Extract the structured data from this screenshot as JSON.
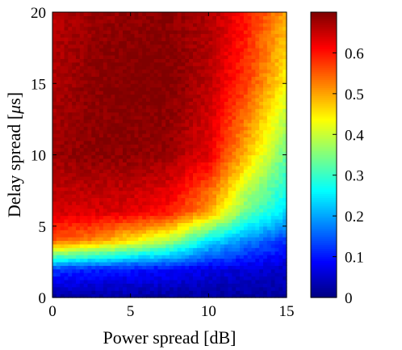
{
  "chart_data": {
    "type": "heatmap",
    "xlabel": "Power spread [dB]",
    "ylabel_prefix": "Delay spread [",
    "ylabel_mu": "μ",
    "ylabel_suffix": "s]",
    "xlim": [
      0,
      15
    ],
    "ylim": [
      0,
      20
    ],
    "x_ticks": [
      0,
      5,
      10,
      15
    ],
    "y_ticks": [
      0,
      5,
      10,
      15,
      20
    ],
    "colorbar": {
      "range": [
        0,
        0.7
      ],
      "ticks": [
        0,
        0.1,
        0.2,
        0.3,
        0.4,
        0.5,
        0.6
      ],
      "tick_labels": [
        "0",
        "0.1",
        "0.2",
        "0.3",
        "0.4",
        "0.5",
        "0.6"
      ],
      "colormap": "jet"
    },
    "grid": false,
    "sample_x": [
      0,
      2.5,
      5,
      7.5,
      10,
      12.5,
      15
    ],
    "sample_y": [
      0,
      2,
      4,
      6,
      10,
      15,
      20
    ],
    "sample_values": [
      [
        0.02,
        0.02,
        0.02,
        0.02,
        0.02,
        0.02,
        0.02
      ],
      [
        0.13,
        0.11,
        0.1,
        0.09,
        0.07,
        0.06,
        0.05
      ],
      [
        0.55,
        0.52,
        0.45,
        0.38,
        0.25,
        0.18,
        0.12
      ],
      [
        0.64,
        0.64,
        0.63,
        0.6,
        0.5,
        0.33,
        0.24
      ],
      [
        0.68,
        0.69,
        0.69,
        0.68,
        0.63,
        0.48,
        0.33
      ],
      [
        0.67,
        0.69,
        0.7,
        0.7,
        0.66,
        0.57,
        0.44
      ],
      [
        0.66,
        0.68,
        0.69,
        0.69,
        0.67,
        0.6,
        0.5
      ]
    ]
  }
}
